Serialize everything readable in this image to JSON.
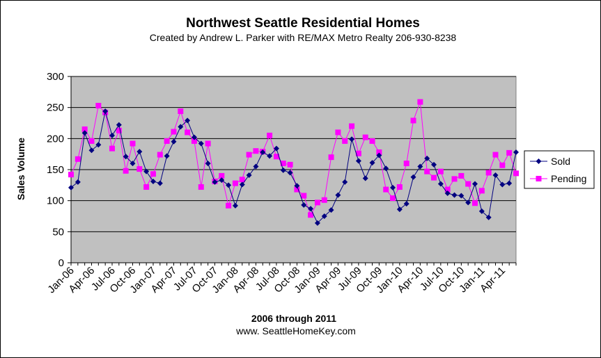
{
  "chart_data": {
    "type": "line",
    "title": "Northwest Seattle  Residential  Homes",
    "subtitle": "Created by Andrew L. Parker with RE/MAX Metro Realty 206-930-8238",
    "xlabel": "2006 through 2011",
    "xlabel2": "www. SeattleHomeKey.com",
    "ylabel": "Sales Volume",
    "ylim": [
      0,
      300
    ],
    "yticks": [
      0,
      50,
      100,
      150,
      200,
      250,
      300
    ],
    "grid": true,
    "legend_position": "right",
    "plot_background": "#c0c0c0",
    "x": [
      "Jan-06",
      "Feb-06",
      "Mar-06",
      "Apr-06",
      "May-06",
      "Jun-06",
      "Jul-06",
      "Aug-06",
      "Sep-06",
      "Oct-06",
      "Nov-06",
      "Dec-06",
      "Jan-07",
      "Feb-07",
      "Mar-07",
      "Apr-07",
      "May-07",
      "Jun-07",
      "Jul-07",
      "Aug-07",
      "Sep-07",
      "Oct-07",
      "Nov-07",
      "Dec-07",
      "Jan-08",
      "Feb-08",
      "Mar-08",
      "Apr-08",
      "May-08",
      "Jun-08",
      "Jul-08",
      "Aug-08",
      "Sep-08",
      "Oct-08",
      "Nov-08",
      "Dec-08",
      "Jan-09",
      "Feb-09",
      "Mar-09",
      "Apr-09",
      "May-09",
      "Jun-09",
      "Jul-09",
      "Aug-09",
      "Sep-09",
      "Oct-09",
      "Nov-09",
      "Dec-09",
      "Jan-10",
      "Feb-10",
      "Mar-10",
      "Apr-10",
      "May-10",
      "Jun-10",
      "Jul-10",
      "Aug-10",
      "Sep-10",
      "Oct-10",
      "Nov-10",
      "Dec-10",
      "Jan-11",
      "Feb-11",
      "Mar-11",
      "Apr-11",
      "May-11",
      "Jun-11"
    ],
    "x_tick_labels": [
      "Jan-06",
      "Apr-06",
      "Jul-06",
      "Oct-06",
      "Jan-07",
      "Apr-07",
      "Jul-07",
      "Oct-07",
      "Jan-08",
      "Apr-08",
      "Jul-08",
      "Oct-08",
      "Jan-09",
      "Apr-09",
      "Jul-09",
      "Oct-09",
      "Jan-10",
      "Apr-10",
      "Jul-10",
      "Oct-10",
      "Jan-11",
      "Apr-11"
    ],
    "series": [
      {
        "name": "Sold",
        "color": "#000080",
        "marker": "diamond",
        "values": [
          121,
          130,
          209,
          181,
          190,
          244,
          205,
          222,
          171,
          160,
          179,
          147,
          131,
          128,
          172,
          195,
          219,
          229,
          202,
          192,
          160,
          130,
          133,
          125,
          92,
          126,
          141,
          155,
          178,
          172,
          184,
          149,
          145,
          124,
          93,
          87,
          64,
          75,
          85,
          109,
          130,
          199,
          164,
          136,
          161,
          173,
          152,
          121,
          86,
          95,
          138,
          155,
          168,
          158,
          127,
          112,
          109,
          108,
          97,
          127,
          83,
          73,
          141,
          126,
          128,
          178
        ]
      },
      {
        "name": "Pending",
        "color": "#ff00ff",
        "marker": "square",
        "values": [
          142,
          167,
          215,
          196,
          253,
          242,
          184,
          213,
          148,
          192,
          151,
          122,
          143,
          174,
          196,
          211,
          244,
          210,
          196,
          122,
          192,
          131,
          140,
          92,
          128,
          134,
          174,
          180,
          179,
          205,
          171,
          160,
          158,
          118,
          108,
          77,
          97,
          101,
          170,
          210,
          196,
          220,
          176,
          202,
          196,
          178,
          118,
          104,
          122,
          160,
          229,
          259,
          147,
          137,
          147,
          118,
          135,
          140,
          127,
          96,
          116,
          145,
          174,
          157,
          177,
          144
        ]
      }
    ]
  }
}
